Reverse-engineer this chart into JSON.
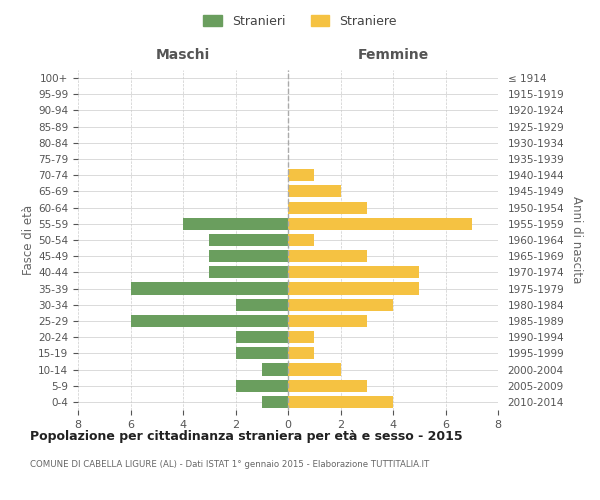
{
  "age_groups": [
    "0-4",
    "5-9",
    "10-14",
    "15-19",
    "20-24",
    "25-29",
    "30-34",
    "35-39",
    "40-44",
    "45-49",
    "50-54",
    "55-59",
    "60-64",
    "65-69",
    "70-74",
    "75-79",
    "80-84",
    "85-89",
    "90-94",
    "95-99",
    "100+"
  ],
  "birth_years": [
    "2010-2014",
    "2005-2009",
    "2000-2004",
    "1995-1999",
    "1990-1994",
    "1985-1989",
    "1980-1984",
    "1975-1979",
    "1970-1974",
    "1965-1969",
    "1960-1964",
    "1955-1959",
    "1950-1954",
    "1945-1949",
    "1940-1944",
    "1935-1939",
    "1930-1934",
    "1925-1929",
    "1920-1924",
    "1915-1919",
    "≤ 1914"
  ],
  "maschi": [
    1,
    2,
    1,
    2,
    2,
    6,
    2,
    6,
    3,
    3,
    3,
    4,
    0,
    0,
    0,
    0,
    0,
    0,
    0,
    0,
    0
  ],
  "femmine": [
    4,
    3,
    2,
    1,
    1,
    3,
    4,
    5,
    5,
    3,
    1,
    7,
    3,
    2,
    1,
    0,
    0,
    0,
    0,
    0,
    0
  ],
  "color_maschi": "#6a9e5e",
  "color_femmine": "#f5c242",
  "title": "Popolazione per cittadinanza straniera per età e sesso - 2015",
  "subtitle": "COMUNE DI CABELLA LIGURE (AL) - Dati ISTAT 1° gennaio 2015 - Elaborazione TUTTITALIA.IT",
  "label_maschi": "Maschi",
  "label_femmine": "Femmine",
  "ylabel_left": "Fasce di età",
  "ylabel_right": "Anni di nascita",
  "legend_maschi": "Stranieri",
  "legend_femmine": "Straniere",
  "xlim": 8,
  "background_color": "#ffffff",
  "grid_color": "#cccccc"
}
